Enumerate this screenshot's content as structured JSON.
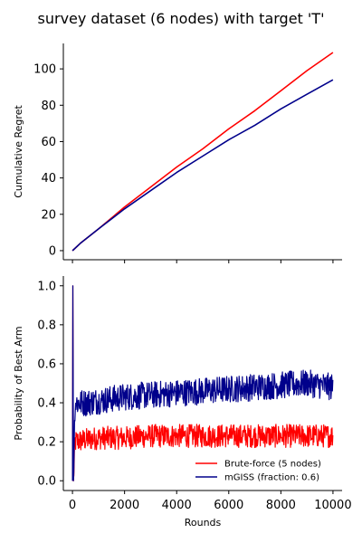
{
  "figure": {
    "title": "survey dataset (6 nodes) with target 'T'"
  },
  "chart_data": [
    {
      "type": "line",
      "title": "survey dataset (6 nodes) with target 'T'",
      "xlabel": "",
      "ylabel": "Cumulative Regret",
      "xlim": [
        -350,
        10350
      ],
      "ylim": [
        -5,
        114
      ],
      "x_ticks": [
        0,
        2000,
        4000,
        6000,
        8000,
        10000
      ],
      "x_tick_labels_shown": false,
      "y_ticks": [
        0,
        20,
        40,
        60,
        80,
        100
      ],
      "y_tick_labels": [
        "0",
        "20",
        "40",
        "60",
        "80",
        "100"
      ],
      "grid": false,
      "legend": "none",
      "series": [
        {
          "name": "Brute-force (5 nodes)",
          "color": "#ff0000",
          "x": [
            0,
            300,
            1000,
            2000,
            3000,
            4000,
            5000,
            6000,
            7000,
            8000,
            9000,
            10000
          ],
          "y": [
            0,
            4,
            12,
            24,
            35,
            46,
            56,
            67,
            77,
            88,
            99,
            109
          ]
        },
        {
          "name": "mGISS (fraction: 0.6)",
          "color": "#00008b",
          "x": [
            0,
            300,
            1000,
            2000,
            3000,
            4000,
            5000,
            6000,
            7000,
            8000,
            9000,
            10000
          ],
          "y": [
            0,
            4,
            12,
            23,
            33,
            43,
            52,
            61,
            69,
            78,
            86,
            94
          ]
        }
      ]
    },
    {
      "type": "line",
      "title": "",
      "xlabel": "Rounds",
      "ylabel": "Probability of Best Arm",
      "xlim": [
        -350,
        10350
      ],
      "ylim": [
        -0.05,
        1.05
      ],
      "x_ticks": [
        0,
        2000,
        4000,
        6000,
        8000,
        10000
      ],
      "x_tick_labels": [
        "0",
        "2000",
        "4000",
        "6000",
        "8000",
        "10000"
      ],
      "y_ticks": [
        0.0,
        0.2,
        0.4,
        0.6,
        0.8,
        1.0
      ],
      "y_tick_labels": [
        "0.0",
        "0.2",
        "0.4",
        "0.6",
        "0.8",
        "1.0"
      ],
      "grid": false,
      "legend": "bottom-right",
      "series": [
        {
          "name": "Brute-force (5 nodes)",
          "color": "#ff0000",
          "x": [
            0,
            15,
            40,
            100,
            500,
            1000,
            2000,
            3000,
            4000,
            5000,
            6000,
            7000,
            8000,
            9000,
            10000
          ],
          "y": [
            0.0,
            1.0,
            0.0,
            0.2,
            0.21,
            0.22,
            0.22,
            0.23,
            0.23,
            0.23,
            0.23,
            0.23,
            0.23,
            0.23,
            0.23
          ],
          "noise": 0.06
        },
        {
          "name": "mGISS (fraction: 0.6)",
          "color": "#00008b",
          "x": [
            0,
            15,
            40,
            100,
            500,
            1000,
            2000,
            3000,
            4000,
            5000,
            6000,
            7000,
            8000,
            9000,
            10000
          ],
          "y": [
            0.0,
            1.0,
            0.0,
            0.4,
            0.4,
            0.41,
            0.43,
            0.44,
            0.45,
            0.46,
            0.47,
            0.48,
            0.49,
            0.5,
            0.48
          ],
          "noise": 0.07
        }
      ]
    }
  ]
}
